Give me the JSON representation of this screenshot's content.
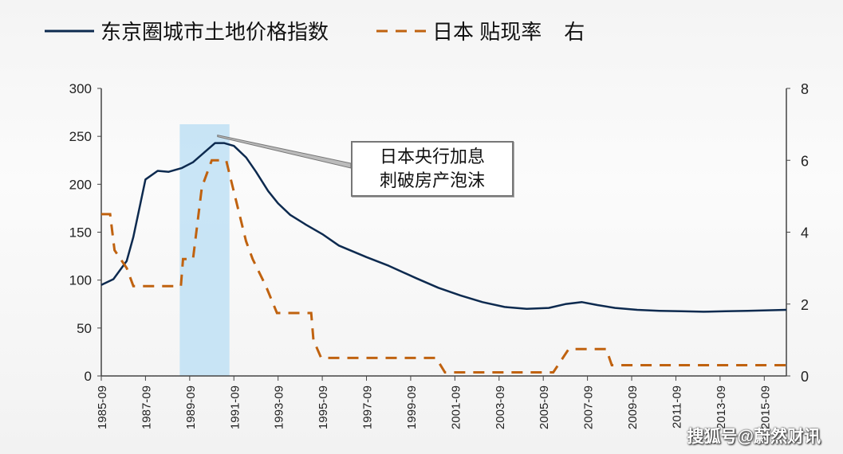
{
  "chart_data": {
    "type": "line",
    "title": "",
    "legend_placement": "top",
    "series": [
      {
        "name": "东京圈城市土地价格指数",
        "axis": "left",
        "color": "#0d2a4f",
        "style": "solid",
        "points": [
          [
            1985.75,
            95
          ],
          [
            1986.3,
            101
          ],
          [
            1986.9,
            120
          ],
          [
            1987.2,
            145
          ],
          [
            1987.75,
            205
          ],
          [
            1988.3,
            214
          ],
          [
            1988.8,
            213
          ],
          [
            1989.4,
            217
          ],
          [
            1989.9,
            223
          ],
          [
            1990.4,
            233
          ],
          [
            1990.9,
            243
          ],
          [
            1991.3,
            243
          ],
          [
            1991.75,
            240
          ],
          [
            1992.3,
            228
          ],
          [
            1992.75,
            213
          ],
          [
            1993.3,
            193
          ],
          [
            1993.75,
            180
          ],
          [
            1994.3,
            168
          ],
          [
            1995.0,
            158
          ],
          [
            1995.75,
            148
          ],
          [
            1996.5,
            136
          ],
          [
            1997.75,
            124
          ],
          [
            1998.75,
            115
          ],
          [
            2000.0,
            102
          ],
          [
            2001.0,
            92
          ],
          [
            2002.0,
            84
          ],
          [
            2003.0,
            77
          ],
          [
            2004.0,
            72
          ],
          [
            2005.0,
            70
          ],
          [
            2006.0,
            71
          ],
          [
            2006.75,
            75
          ],
          [
            2007.5,
            77
          ],
          [
            2008.2,
            74
          ],
          [
            2009.0,
            71
          ],
          [
            2010.0,
            69
          ],
          [
            2011.0,
            68
          ],
          [
            2012.0,
            67.5
          ],
          [
            2013.0,
            67
          ],
          [
            2014.0,
            67.5
          ],
          [
            2015.0,
            68
          ],
          [
            2016.75,
            69
          ]
        ]
      },
      {
        "name": "日本 贴现率",
        "legend_suffix": "右",
        "axis": "right",
        "color": "#c0620f",
        "style": "dashed",
        "points": [
          [
            1985.75,
            4.5
          ],
          [
            1986.15,
            4.5
          ],
          [
            1986.35,
            3.5
          ],
          [
            1986.9,
            3.0
          ],
          [
            1987.2,
            2.5
          ],
          [
            1989.35,
            2.5
          ],
          [
            1989.45,
            3.25
          ],
          [
            1989.9,
            3.25
          ],
          [
            1990.3,
            5.25
          ],
          [
            1990.75,
            6.0
          ],
          [
            1991.4,
            6.0
          ],
          [
            1991.6,
            5.5
          ],
          [
            1992.3,
            3.75
          ],
          [
            1992.6,
            3.25
          ],
          [
            1993.2,
            2.5
          ],
          [
            1993.7,
            1.75
          ],
          [
            1995.25,
            1.75
          ],
          [
            1995.35,
            1.0
          ],
          [
            1995.7,
            0.5
          ],
          [
            2000.9,
            0.5
          ],
          [
            2001.3,
            0.1
          ],
          [
            2006.2,
            0.1
          ],
          [
            2006.9,
            0.75
          ],
          [
            2008.6,
            0.75
          ],
          [
            2008.85,
            0.3
          ],
          [
            2016.75,
            0.3
          ]
        ]
      }
    ],
    "x_ticks": [
      "1985-09",
      "1987-09",
      "1989-09",
      "1991-09",
      "1993-09",
      "1995-09",
      "1997-09",
      "1999-09",
      "2001-09",
      "2003-09",
      "2005-09",
      "2007-09",
      "2009-09",
      "2011-09",
      "2013-09",
      "2015-09"
    ],
    "xlim": [
      1985.75,
      2016.75
    ],
    "y_left": {
      "ticks": [
        "0",
        "50",
        "100",
        "150",
        "200",
        "250",
        "300"
      ],
      "ylim": [
        0,
        300
      ]
    },
    "y_right": {
      "ticks": [
        "0",
        "2",
        "4",
        "6",
        "8"
      ],
      "ylim": [
        0,
        8
      ]
    },
    "shaded_region": {
      "x": [
        1989.3,
        1991.55
      ],
      "color": "#bfe0f5"
    },
    "annotation": {
      "lines": [
        "日本央行加息",
        "刺破房产泡沫"
      ],
      "target": [
        1991.3,
        6.7
      ]
    },
    "grid": false
  },
  "watermark": "搜狐号@蔚然财讯"
}
